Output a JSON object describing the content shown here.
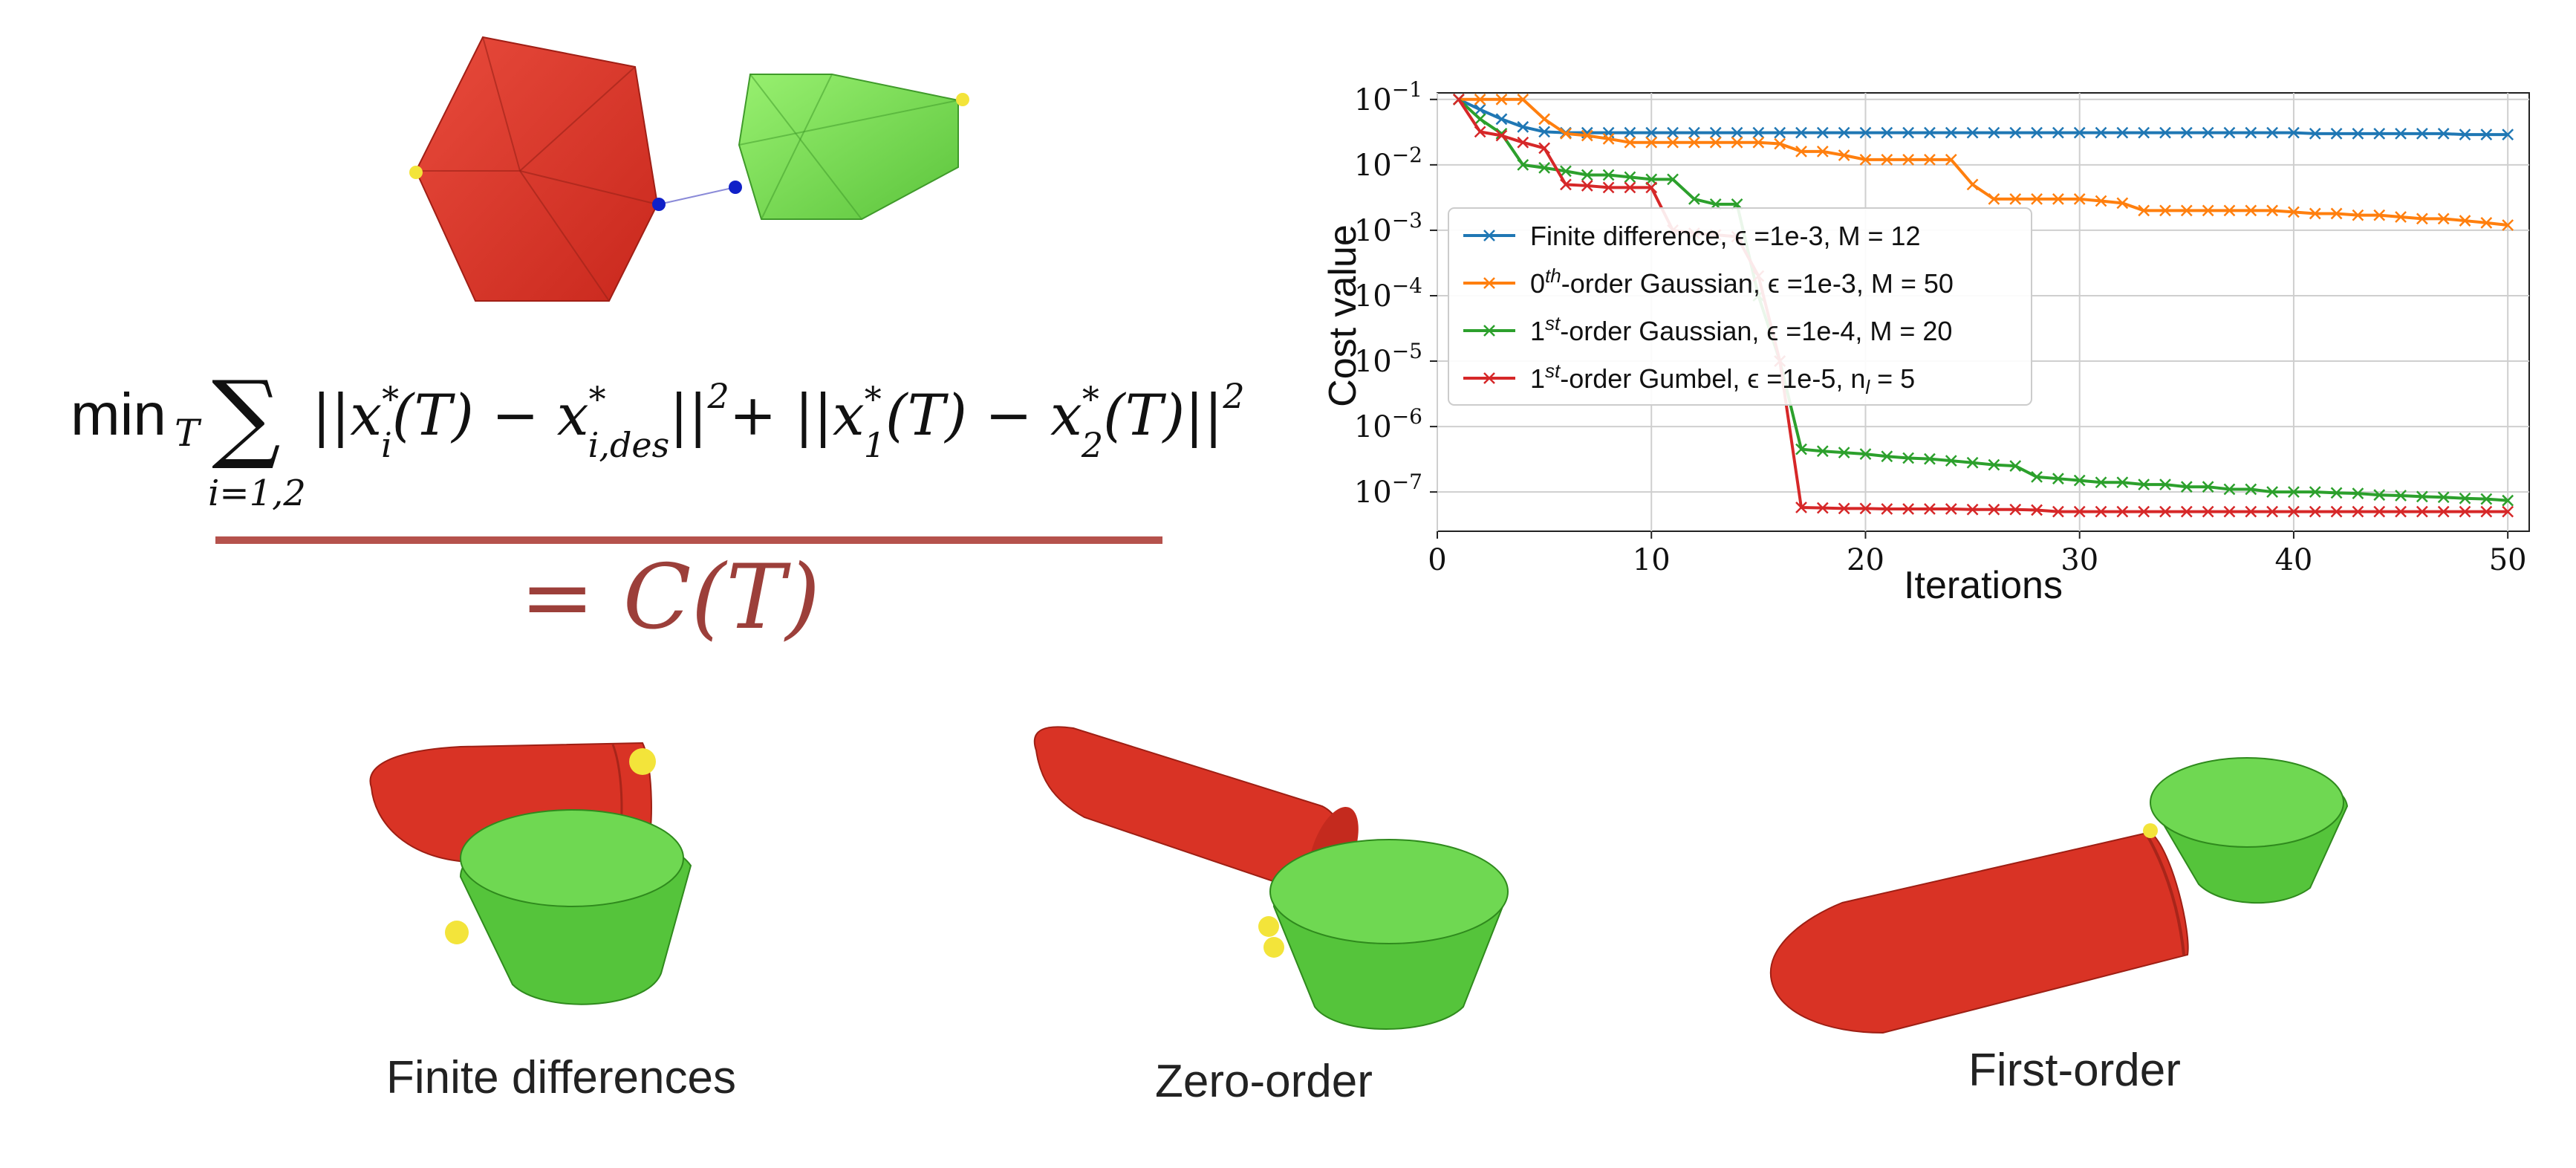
{
  "formula": {
    "min": "min",
    "min_sub": "T",
    "sum": "∑",
    "sum_sub": "i=1,2",
    "term1": "||x",
    "term1_sup": "*",
    "term1_sub": "i",
    "term1_arg": "(T) − x",
    "term1_des_sup": "*",
    "term1_des_sub": "i,des",
    "term1_end": "||",
    "sq1": "2",
    "plus": "+ ||x",
    "x1_sup": "*",
    "x1_sub": "1",
    "mid": "(T) − x",
    "x2_sup": "*",
    "x2_sub": "2",
    "tail": "(T)||",
    "sq2": "2",
    "result": "= C(T)"
  },
  "captions": {
    "finite": "Finite differences",
    "zero": "Zero-order",
    "first": "First-order"
  },
  "colors": {
    "red_body": "#e2382a",
    "green_body": "#66d149",
    "yellow_point": "#f3e43a",
    "blue_point": "#1020c8",
    "accent": "#9c3f3a"
  },
  "chart_data": {
    "type": "line",
    "xlabel": "Iterations",
    "ylabel": "Cost value",
    "xlim": [
      0,
      51
    ],
    "ylim_log10": [
      -7.6,
      -0.9
    ],
    "log_y": true,
    "grid": true,
    "legend_position": "center-left",
    "xticks": [
      0,
      10,
      20,
      30,
      40,
      50
    ],
    "yticks": [
      {
        "base": "10",
        "exp": "−1",
        "value": -1
      },
      {
        "base": "10",
        "exp": "−2",
        "value": -2
      },
      {
        "base": "10",
        "exp": "−3",
        "value": -3
      },
      {
        "base": "10",
        "exp": "−4",
        "value": -4
      },
      {
        "base": "10",
        "exp": "−5",
        "value": -5
      },
      {
        "base": "10",
        "exp": "−6",
        "value": -6
      },
      {
        "base": "10",
        "exp": "−7",
        "value": -7
      }
    ],
    "series": [
      {
        "name": "Finite difference, ϵ =1e-3, M = 12",
        "color": "#1f77b4",
        "x": [
          1,
          2,
          3,
          4,
          5,
          6,
          7,
          8,
          9,
          10,
          11,
          12,
          13,
          14,
          15,
          16,
          17,
          18,
          19,
          20,
          21,
          22,
          23,
          24,
          25,
          26,
          27,
          28,
          29,
          30,
          31,
          32,
          33,
          34,
          35,
          36,
          37,
          38,
          39,
          40,
          41,
          42,
          43,
          44,
          45,
          46,
          47,
          48,
          49,
          50
        ],
        "y": [
          0.1,
          0.07,
          0.05,
          0.038,
          0.032,
          0.031,
          0.031,
          0.031,
          0.031,
          0.031,
          0.031,
          0.031,
          0.031,
          0.031,
          0.031,
          0.031,
          0.031,
          0.031,
          0.031,
          0.031,
          0.031,
          0.031,
          0.031,
          0.031,
          0.031,
          0.031,
          0.031,
          0.031,
          0.031,
          0.031,
          0.031,
          0.031,
          0.031,
          0.031,
          0.031,
          0.031,
          0.031,
          0.031,
          0.031,
          0.031,
          0.03,
          0.03,
          0.03,
          0.03,
          0.03,
          0.03,
          0.03,
          0.029,
          0.029,
          0.029
        ]
      },
      {
        "name": "0th-order Gaussian, ϵ =1e-3, M = 50",
        "name_base": "0",
        "name_sup": "th",
        "name_rest": "-order Gaussian, ϵ =1e-3, M = 50",
        "color": "#ff7f0e",
        "x": [
          1,
          2,
          3,
          4,
          5,
          6,
          7,
          8,
          9,
          10,
          11,
          12,
          13,
          14,
          15,
          16,
          17,
          18,
          19,
          20,
          21,
          22,
          23,
          24,
          25,
          26,
          27,
          28,
          29,
          30,
          31,
          32,
          33,
          34,
          35,
          36,
          37,
          38,
          39,
          40,
          41,
          42,
          43,
          44,
          45,
          46,
          47,
          48,
          49,
          50
        ],
        "y": [
          0.1,
          0.1,
          0.1,
          0.1,
          0.05,
          0.03,
          0.028,
          0.025,
          0.022,
          0.022,
          0.022,
          0.022,
          0.022,
          0.022,
          0.022,
          0.021,
          0.016,
          0.016,
          0.014,
          0.012,
          0.012,
          0.012,
          0.012,
          0.012,
          0.005,
          0.003,
          0.003,
          0.003,
          0.003,
          0.003,
          0.0028,
          0.0026,
          0.002,
          0.002,
          0.002,
          0.002,
          0.002,
          0.002,
          0.002,
          0.0019,
          0.0018,
          0.0018,
          0.0017,
          0.0017,
          0.0016,
          0.0015,
          0.0015,
          0.0014,
          0.0013,
          0.0012
        ]
      },
      {
        "name": "1st-order Gaussian, ϵ =1e-4, M = 20",
        "name_base": "1",
        "name_sup": "st",
        "name_rest": "-order Gaussian, ϵ =1e-4, M = 20",
        "color": "#2ca02c",
        "x": [
          1,
          2,
          3,
          4,
          5,
          6,
          7,
          8,
          9,
          10,
          11,
          12,
          13,
          14,
          15,
          16,
          17,
          18,
          19,
          20,
          21,
          22,
          23,
          24,
          25,
          26,
          27,
          28,
          29,
          30,
          31,
          32,
          33,
          34,
          35,
          36,
          37,
          38,
          39,
          40,
          41,
          42,
          43,
          44,
          45,
          46,
          47,
          48,
          49,
          50
        ],
        "y": [
          0.1,
          0.05,
          0.03,
          0.01,
          0.009,
          0.008,
          0.007,
          0.007,
          0.0065,
          0.006,
          0.006,
          0.003,
          0.0025,
          0.0025,
          0.0001,
          1e-05,
          4.5e-07,
          4.2e-07,
          4e-07,
          3.8e-07,
          3.5e-07,
          3.3e-07,
          3.2e-07,
          3e-07,
          2.8e-07,
          2.6e-07,
          2.5e-07,
          1.7e-07,
          1.6e-07,
          1.5e-07,
          1.4e-07,
          1.4e-07,
          1.3e-07,
          1.3e-07,
          1.2e-07,
          1.2e-07,
          1.1e-07,
          1.1e-07,
          1e-07,
          1e-07,
          1e-07,
          9.7e-08,
          9.5e-08,
          9e-08,
          8.8e-08,
          8.5e-08,
          8.3e-08,
          8e-08,
          7.8e-08,
          7.4e-08
        ]
      },
      {
        "name": "1st-order Gumbel, ϵ =1e-5, nl = 5",
        "name_base": "1",
        "name_sup": "st",
        "name_rest": "-order Gumbel, ϵ =1e-5, n",
        "name_sub": "l",
        "name_tail": " = 5",
        "color": "#d62728",
        "x": [
          1,
          2,
          3,
          4,
          5,
          6,
          7,
          8,
          9,
          10,
          11,
          12,
          13,
          14,
          15,
          16,
          17,
          18,
          19,
          20,
          21,
          22,
          23,
          24,
          25,
          26,
          27,
          28,
          29,
          30,
          31,
          32,
          33,
          34,
          35,
          36,
          37,
          38,
          39,
          40,
          41,
          42,
          43,
          44,
          45,
          46,
          47,
          48,
          49,
          50
        ],
        "y": [
          0.1,
          0.032,
          0.028,
          0.022,
          0.018,
          0.005,
          0.0048,
          0.0045,
          0.0045,
          0.0045,
          0.001,
          0.0009,
          0.00085,
          0.0008,
          0.0002,
          1e-05,
          5.8e-08,
          5.7e-08,
          5.6e-08,
          5.6e-08,
          5.5e-08,
          5.5e-08,
          5.5e-08,
          5.5e-08,
          5.4e-08,
          5.4e-08,
          5.4e-08,
          5.3e-08,
          5e-08,
          5e-08,
          5e-08,
          5e-08,
          5e-08,
          5e-08,
          5e-08,
          5e-08,
          5e-08,
          5e-08,
          5e-08,
          5e-08,
          5e-08,
          5e-08,
          5e-08,
          5e-08,
          5e-08,
          5e-08,
          5e-08,
          5e-08,
          5e-08,
          5e-08
        ]
      }
    ]
  }
}
